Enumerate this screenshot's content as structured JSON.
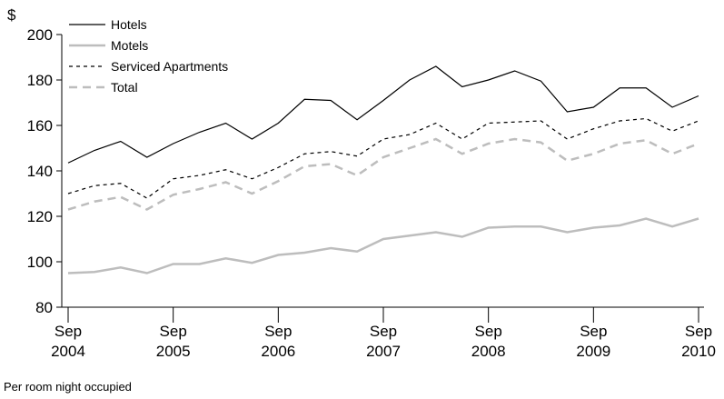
{
  "chart_data": {
    "type": "line",
    "y_unit": "$",
    "footnote": "Per room night occupied",
    "categories": [
      "Sep 2004",
      null,
      null,
      null,
      "Sep 2005",
      null,
      null,
      null,
      "Sep 2006",
      null,
      null,
      null,
      "Sep 2007",
      null,
      null,
      null,
      "Sep 2008",
      null,
      null,
      null,
      "Sep 2009",
      null,
      null,
      null,
      "Sep 2010"
    ],
    "series": [
      {
        "name": "Hotels",
        "color": "#000000",
        "dash": "none",
        "width": 1.2,
        "values": [
          143.5,
          149,
          153,
          146,
          152,
          157,
          161,
          154,
          161,
          171.5,
          171,
          162.5,
          171,
          180,
          186,
          177,
          180,
          184,
          179.5,
          166,
          168,
          176.5,
          176.5,
          168,
          173
        ]
      },
      {
        "name": "Motels",
        "color": "#bdbdbd",
        "dash": "none",
        "width": 2.5,
        "values": [
          95,
          95.5,
          97.5,
          95,
          99,
          99,
          101.5,
          99.5,
          103,
          104,
          106,
          104.5,
          110,
          111.5,
          113,
          111,
          115,
          115.5,
          115.5,
          113,
          115,
          116,
          119,
          115.5,
          119
        ]
      },
      {
        "name": "Serviced Apartments",
        "color": "#000000",
        "dash": "4,4",
        "width": 1.2,
        "values": [
          130,
          133.5,
          134.5,
          128,
          136.5,
          138,
          140.5,
          136.5,
          141.5,
          147.5,
          148.5,
          146.5,
          154,
          156,
          161,
          154,
          161,
          161.5,
          162,
          154,
          158.5,
          162,
          163,
          157.5,
          162
        ]
      },
      {
        "name": "Total",
        "color": "#bdbdbd",
        "dash": "9,6",
        "width": 2.5,
        "values": [
          123,
          126.5,
          128.5,
          123,
          129.5,
          132,
          135,
          130,
          135.5,
          142,
          143,
          138,
          146,
          150,
          154,
          147.5,
          152,
          154,
          152.5,
          144.5,
          147.5,
          152,
          153.5,
          147.5,
          152
        ]
      }
    ],
    "ylim": [
      80,
      200
    ],
    "yticks": [
      80,
      100,
      120,
      140,
      160,
      180,
      200
    ]
  }
}
